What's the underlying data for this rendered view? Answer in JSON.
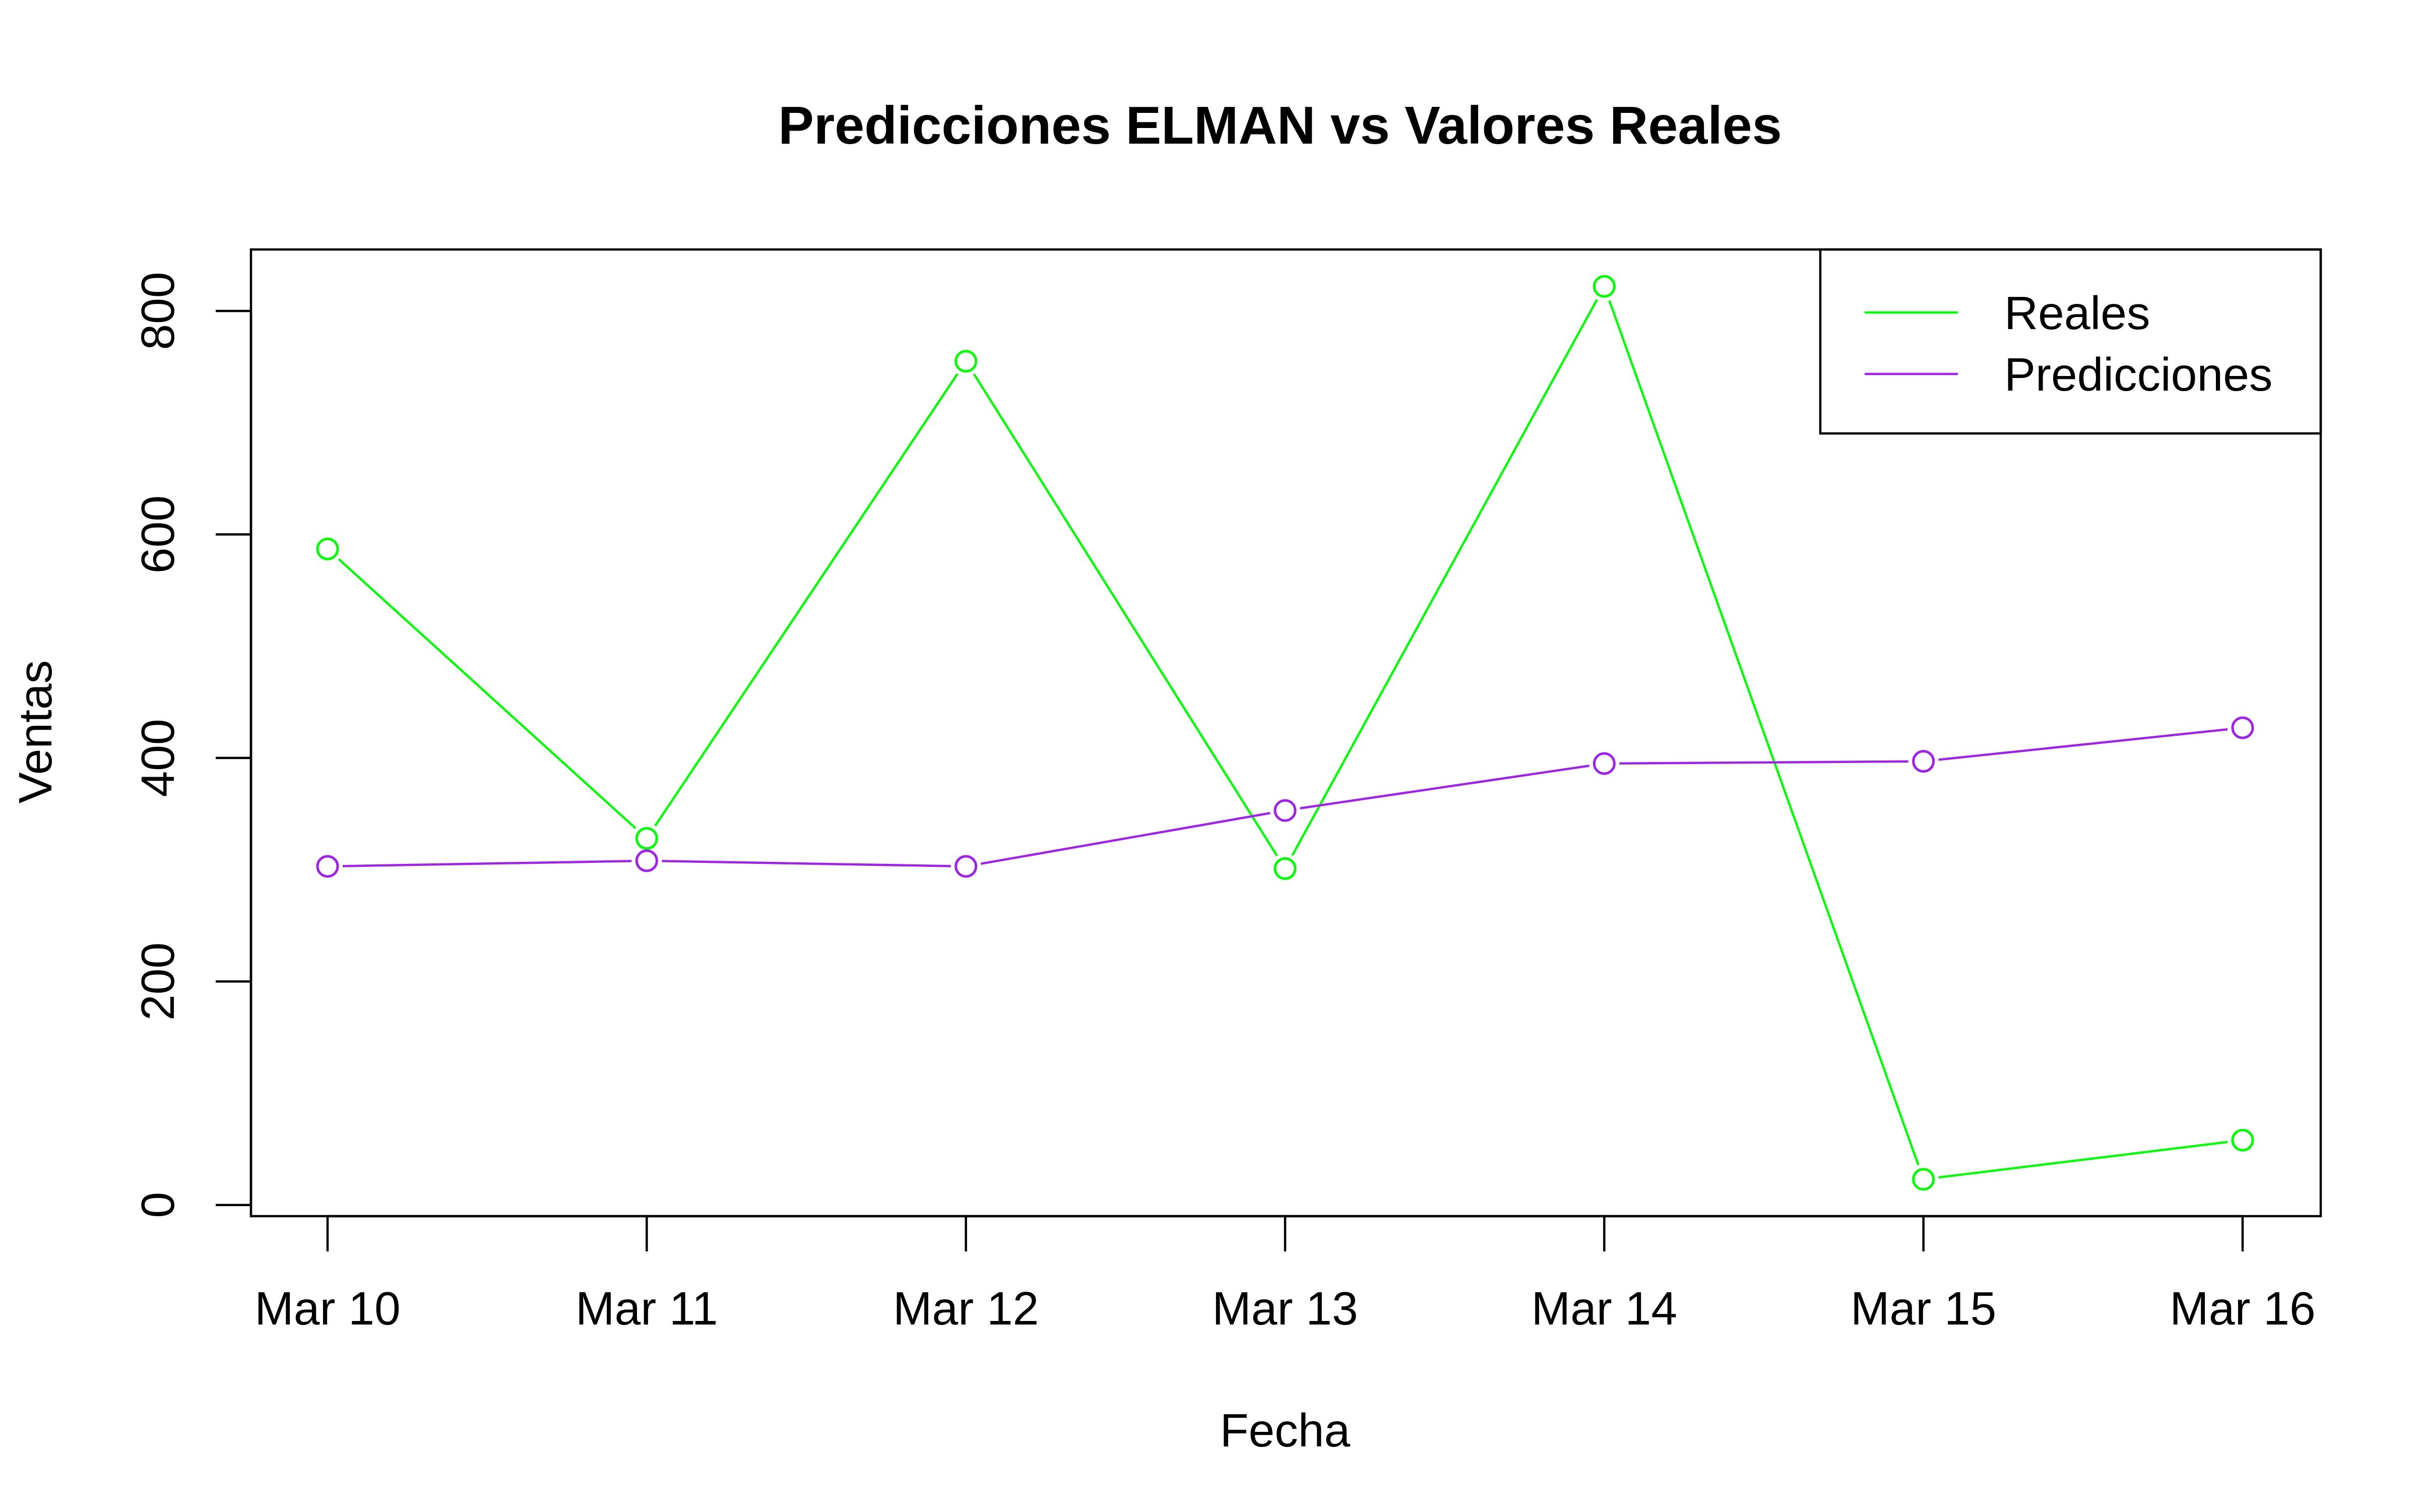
{
  "chart_data": {
    "type": "line",
    "title": "Predicciones ELMAN vs Valores Reales",
    "xlabel": "Fecha",
    "ylabel": "Ventas",
    "categories": [
      "Mar 10",
      "Mar 11",
      "Mar 12",
      "Mar 13",
      "Mar 14",
      "Mar 15",
      "Mar 16"
    ],
    "y_ticks": [
      0,
      200,
      400,
      600,
      800
    ],
    "ylim": [
      -10,
      855
    ],
    "series": [
      {
        "name": "Reales",
        "color": "#00ff00",
        "marker": "open-circle",
        "values": [
          587,
          328,
          755,
          301,
          822,
          23,
          58
        ]
      },
      {
        "name": "Predicciones",
        "color": "#a020f0",
        "marker": "open-circle",
        "values": [
          303,
          308,
          303,
          353,
          395,
          397,
          427
        ]
      }
    ],
    "legend_position": "top-right",
    "grid": false
  }
}
